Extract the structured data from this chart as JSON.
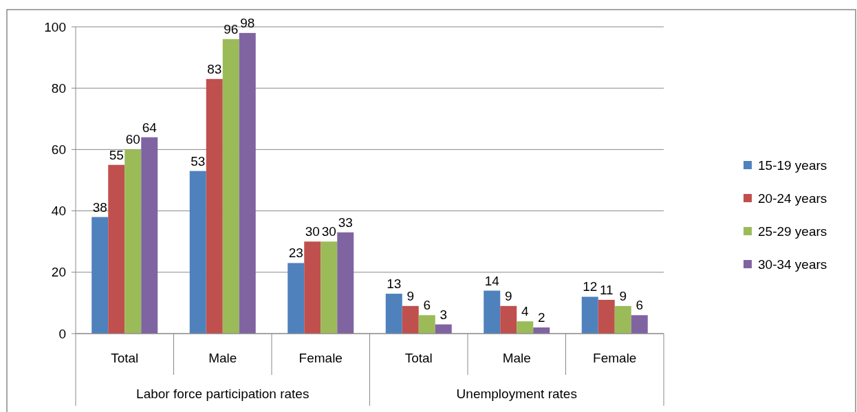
{
  "chart_data": {
    "type": "bar",
    "categories": [
      "Total",
      "Male",
      "Female",
      "Total",
      "Male",
      "Female"
    ],
    "series": [
      {
        "name": "15-19 years",
        "color": "#4f81bd",
        "values": [
          38,
          53,
          23,
          13,
          14,
          12
        ]
      },
      {
        "name": "20-24 years",
        "color": "#c0504d",
        "values": [
          55,
          83,
          30,
          9,
          9,
          11
        ]
      },
      {
        "name": "25-29 years",
        "color": "#9bbb59",
        "values": [
          60,
          96,
          30,
          6,
          4,
          9
        ]
      },
      {
        "name": "30-34 years",
        "color": "#8064a2",
        "values": [
          64,
          98,
          33,
          3,
          2,
          6
        ]
      }
    ],
    "ylim": [
      0,
      100
    ],
    "yticks": [
      0,
      20,
      40,
      60,
      80,
      100
    ],
    "grid": "y",
    "legend": "right",
    "data_labels": true,
    "annotations": [
      "Labor force participation rates",
      "Unemployment rates"
    ]
  }
}
